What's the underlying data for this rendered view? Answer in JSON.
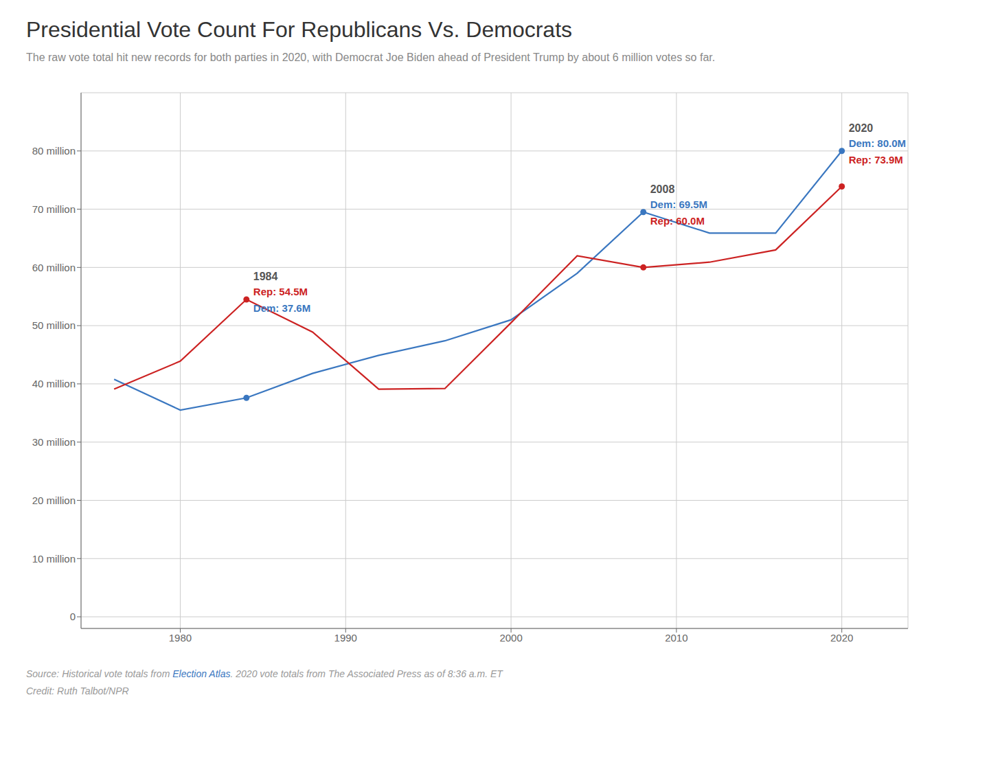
{
  "chart_data": {
    "type": "line",
    "title": "Presidential Vote Count For Republicans Vs. Democrats",
    "subtitle": "The raw vote total hit new records for both parties in 2020, with Democrat Joe Biden ahead of President Trump by about 6 million votes so far.",
    "x": [
      1976,
      1980,
      1984,
      1988,
      1992,
      1996,
      2000,
      2004,
      2008,
      2012,
      2016,
      2020
    ],
    "series": [
      {
        "color": "#3a77c0",
        "values": [
          40.8,
          35.5,
          37.6,
          41.8,
          44.9,
          47.4,
          51.0,
          59.0,
          69.5,
          65.9,
          65.9,
          80.0
        ]
      },
      {
        "color": "#cc2222",
        "values": [
          39.1,
          43.9,
          54.5,
          48.9,
          39.1,
          39.2,
          50.5,
          62.0,
          60.0,
          60.9,
          63.0,
          73.9
        ]
      }
    ],
    "xlim": [
      1974,
      2024
    ],
    "xticks": [
      1980,
      1990,
      2000,
      2010,
      2020
    ],
    "ylim": [
      -2,
      90
    ],
    "yticks": [
      0,
      {
        "value": 10,
        "label": "10 million"
      },
      {
        "value": 20,
        "label": "20 million"
      },
      {
        "value": 30,
        "label": "30 million"
      },
      {
        "value": 40,
        "label": "40 million"
      },
      {
        "value": 50,
        "label": "50 million"
      },
      {
        "value": 60,
        "label": "60 million"
      },
      {
        "value": 70,
        "label": "70 million"
      },
      {
        "value": 80,
        "label": "80 million"
      }
    ],
    "grid": true,
    "annotations": [
      {
        "x": 1984,
        "y": 54.5,
        "texts": [
          {
            "text": "1984",
            "color": "#555555"
          },
          {
            "text": "Rep: 54.5M",
            "color": "#cc2222"
          },
          {
            "text": "Dem: 37.6M",
            "color": "#3a77c0"
          }
        ]
      },
      {
        "x": 2008,
        "y": 69.5,
        "texts": [
          {
            "text": "2008",
            "color": "#555555"
          },
          {
            "text": "Dem: 69.5M",
            "color": "#3a77c0"
          },
          {
            "text": "Rep: 60.0M",
            "color": "#cc2222"
          }
        ]
      },
      {
        "x": 2020,
        "y": 80.0,
        "texts": [
          {
            "text": "2020",
            "color": "#555555"
          },
          {
            "text": "Dem: 80.0M",
            "color": "#3a77c0"
          },
          {
            "text": "Rep: 73.9M",
            "color": "#cc2222"
          }
        ]
      }
    ],
    "source": [
      {
        "text": "Source: Historical vote totals from ",
        "color": "#999999"
      },
      {
        "text": "Election Atlas",
        "color": "#3a77c0"
      },
      {
        "text": ". 2020 vote totals from The Associated Press as of 8:36 a.m. ET",
        "color": "#999999"
      }
    ],
    "credit": "Credit: Ruth Talbot/NPR"
  }
}
